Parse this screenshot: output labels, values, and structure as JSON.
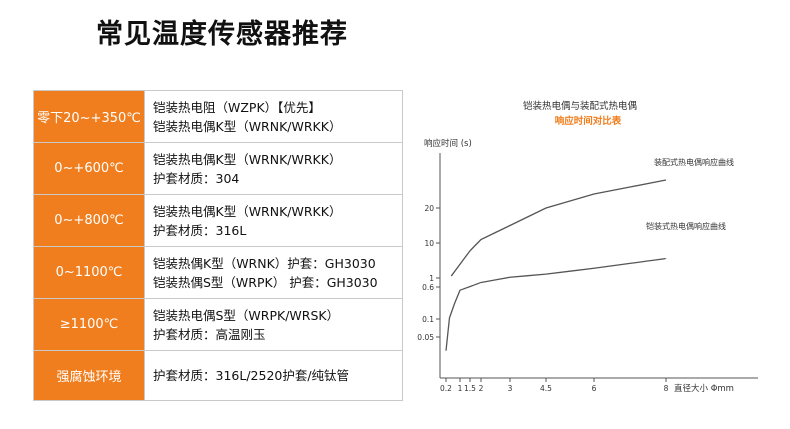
{
  "page_title": "常见温度传感器推荐",
  "table": {
    "rows": [
      {
        "range": "零下20~+350℃",
        "lines": [
          "铠装热电阻（WZPK）【优先】",
          "铠装热电偶K型（WRNK/WRKK）"
        ]
      },
      {
        "range": "0~+600℃",
        "lines": [
          "铠装热电偶K型（WRNK/WRKK）",
          "护套材质：304"
        ]
      },
      {
        "range": "0~+800℃",
        "lines": [
          "铠装热电偶K型（WRNK/WRKK）",
          "护套材质：316L"
        ]
      },
      {
        "range": "0~1100℃",
        "lines": [
          "铠装热偶K型（WRNK）护套：GH3030",
          "铠装热偶S型（WRPK） 护套：GH3030"
        ]
      },
      {
        "range": "≥1100℃",
        "lines": [
          "铠装热电偶S型（WRPK/WRSK）",
          "护套材质：高温刚玉"
        ]
      },
      {
        "range": "强腐蚀环境",
        "lines": [
          "护套材质：316L/2520护套/纯钛管"
        ]
      }
    ]
  },
  "chart_data": {
    "type": "line",
    "title": "铠装热电偶与装配式热电偶",
    "subtitle": "响应时间对比表",
    "ylabel": "响应时间 (s)",
    "xlabel": "直径大小 Φmm",
    "x_ticks": [
      "0.2",
      "1",
      "1.5",
      "2",
      "3",
      "4.5",
      "6",
      "8"
    ],
    "y_ticks": [
      "0.05",
      "0.1",
      "0.6",
      "1",
      "10",
      "20"
    ],
    "series": [
      {
        "name": "装配式热电偶响应曲线",
        "x": [
          0.5,
          1.5,
          2,
          3,
          4.5,
          6,
          8
        ],
        "y": [
          1.5,
          8,
          11,
          15,
          20,
          24,
          28
        ]
      },
      {
        "name": "铠装式热电偶响应曲线",
        "x": [
          0.2,
          0.4,
          0.7,
          1,
          2,
          3,
          4.5,
          6,
          8
        ],
        "y": [
          0.04,
          0.12,
          0.35,
          0.55,
          0.8,
          1.2,
          2,
          3.5,
          6
        ]
      }
    ],
    "colors": {
      "title": "#333333",
      "subtitle": "#f07e1e",
      "axis": "#444444",
      "curve": "#555555"
    }
  }
}
